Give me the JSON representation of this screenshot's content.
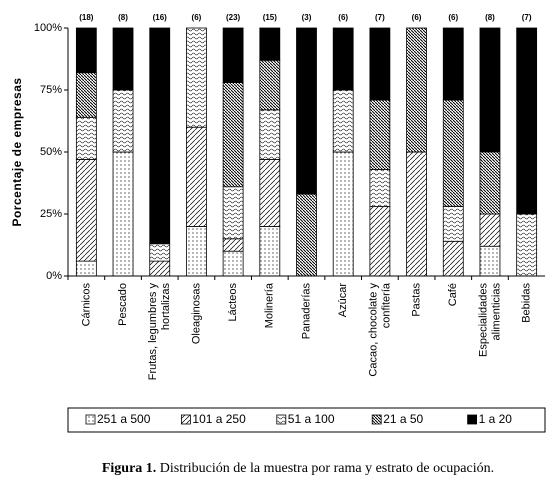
{
  "chart_data": {
    "type": "stacked_bar_100",
    "y_label": "Porcentaje de empresas",
    "caption_label": "Figura 1.",
    "caption_text": "Distribución de la muestra por rama y estrato de ocupación.",
    "categories": [
      [
        "Cárnicos"
      ],
      [
        "Pescado"
      ],
      [
        "Frutas, legumbres y",
        "hortalizas"
      ],
      [
        "Oleaginosas"
      ],
      [
        "Lácteos"
      ],
      [
        "Molinería"
      ],
      [
        "Panaderías"
      ],
      [
        "Azúcar"
      ],
      [
        "Cacao, chocolate y",
        "confitería"
      ],
      [
        "Pastas"
      ],
      [
        "Café"
      ],
      [
        "Especialidades",
        "alimenticias"
      ],
      [
        "Bebidas"
      ]
    ],
    "bar_labels": [
      "(18)",
      "(8)",
      "(16)",
      "(6)",
      "(23)",
      "(15)",
      "(3)",
      "(6)",
      "(7)",
      "(6)",
      "(6)",
      "(8)",
      "(7)"
    ],
    "series": [
      {
        "name": "251 a 500",
        "pattern": "dots",
        "values": [
          6,
          50,
          0,
          20,
          10,
          20,
          0,
          50,
          0,
          0,
          0,
          12,
          0
        ]
      },
      {
        "name": "101 a 250",
        "pattern": "diag",
        "values": [
          41,
          0,
          6,
          40,
          5,
          27,
          0,
          0,
          28,
          50,
          14,
          13,
          0
        ]
      },
      {
        "name": "51 a 100",
        "pattern": "wave",
        "values": [
          17,
          25,
          7,
          40,
          21,
          20,
          0,
          25,
          15,
          0,
          14,
          0,
          25
        ]
      },
      {
        "name": "21 a 50",
        "pattern": "dense",
        "values": [
          18,
          0,
          0,
          0,
          42,
          20,
          33,
          0,
          28,
          50,
          43,
          25,
          0
        ]
      },
      {
        "name": "1 a 20",
        "pattern": "solid",
        "values": [
          18,
          25,
          87,
          0,
          22,
          13,
          67,
          25,
          29,
          0,
          29,
          50,
          75
        ]
      }
    ],
    "ylim": [
      0,
      100
    ],
    "yticks": [
      {
        "value": 0,
        "label": "0%"
      },
      {
        "value": 25,
        "label": "25%"
      },
      {
        "value": 50,
        "label": "50%"
      },
      {
        "value": 75,
        "label": "75%"
      },
      {
        "value": 100,
        "label": "100%"
      }
    ]
  }
}
